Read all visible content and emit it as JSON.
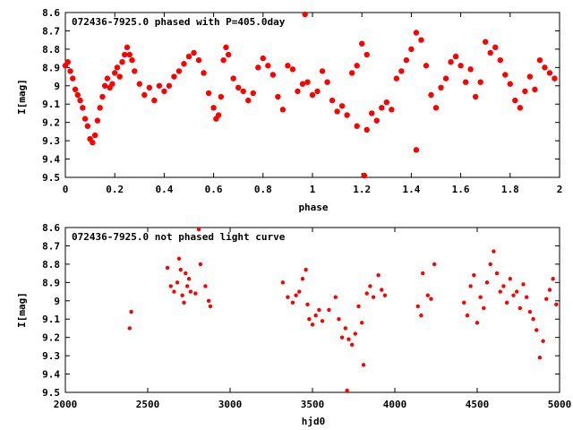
{
  "chart_data": [
    {
      "type": "scatter",
      "title": "072436-7925.0 phased with P=405.0day",
      "xlabel": "phase",
      "ylabel": "I[mag]",
      "xlim": [
        0,
        2
      ],
      "ylim": [
        9.5,
        8.6
      ],
      "y_inverted": true,
      "grid": false,
      "marker_color": "#ff0000",
      "x_ticks": [
        "0",
        "0.2",
        "0.4",
        "0.6",
        "0.8",
        "1",
        "1.2",
        "1.4",
        "1.6",
        "1.8",
        "2"
      ],
      "y_ticks": [
        "8.6",
        "8.7",
        "8.8",
        "8.9",
        "9",
        "9.1",
        "9.2",
        "9.3",
        "9.4",
        "9.5"
      ],
      "series": [
        {
          "points": [
            [
              0.0,
              8.89
            ],
            [
              0.01,
              8.87
            ],
            [
              0.02,
              8.92
            ],
            [
              0.03,
              8.96
            ],
            [
              0.04,
              9.02
            ],
            [
              0.05,
              9.05
            ],
            [
              0.06,
              9.08
            ],
            [
              0.07,
              9.12
            ],
            [
              0.08,
              9.18
            ],
            [
              0.09,
              9.22
            ],
            [
              0.1,
              9.29
            ],
            [
              0.11,
              9.31
            ],
            [
              0.12,
              9.27
            ],
            [
              0.13,
              9.19
            ],
            [
              0.14,
              9.12
            ],
            [
              0.15,
              9.06
            ],
            [
              0.16,
              9.0
            ],
            [
              0.17,
              8.96
            ],
            [
              0.18,
              9.01
            ],
            [
              0.19,
              8.99
            ],
            [
              0.2,
              8.93
            ],
            [
              0.21,
              8.9
            ],
            [
              0.22,
              8.95
            ],
            [
              0.23,
              8.87
            ],
            [
              0.24,
              8.83
            ],
            [
              0.25,
              8.79
            ],
            [
              0.26,
              8.83
            ],
            [
              0.27,
              8.86
            ],
            [
              0.28,
              8.92
            ],
            [
              0.3,
              8.99
            ],
            [
              0.32,
              9.05
            ],
            [
              0.34,
              9.01
            ],
            [
              0.36,
              9.08
            ],
            [
              0.38,
              9.0
            ],
            [
              0.4,
              9.03
            ],
            [
              0.42,
              9.0
            ],
            [
              0.44,
              8.95
            ],
            [
              0.46,
              8.92
            ],
            [
              0.48,
              8.88
            ],
            [
              0.5,
              8.84
            ],
            [
              0.52,
              8.82
            ],
            [
              0.54,
              8.86
            ],
            [
              0.56,
              8.93
            ],
            [
              0.58,
              9.04
            ],
            [
              0.6,
              9.12
            ],
            [
              0.61,
              9.18
            ],
            [
              0.62,
              9.16
            ],
            [
              0.63,
              9.06
            ],
            [
              0.64,
              8.86
            ],
            [
              0.65,
              8.79
            ],
            [
              0.66,
              8.83
            ],
            [
              0.68,
              8.96
            ],
            [
              0.7,
              9.01
            ],
            [
              0.72,
              9.03
            ],
            [
              0.74,
              9.08
            ],
            [
              0.76,
              9.04
            ],
            [
              0.78,
              8.9
            ],
            [
              0.8,
              8.85
            ],
            [
              0.82,
              8.89
            ],
            [
              0.84,
              8.94
            ],
            [
              0.86,
              9.06
            ],
            [
              0.88,
              9.13
            ],
            [
              0.9,
              8.89
            ],
            [
              0.92,
              8.91
            ],
            [
              0.94,
              9.03
            ],
            [
              0.96,
              8.99
            ],
            [
              0.97,
              8.61
            ],
            [
              0.98,
              8.98
            ],
            [
              1.0,
              9.05
            ],
            [
              1.02,
              9.03
            ],
            [
              1.04,
              8.92
            ],
            [
              1.06,
              8.98
            ],
            [
              1.08,
              9.08
            ],
            [
              1.1,
              9.14
            ],
            [
              1.12,
              9.11
            ],
            [
              1.14,
              9.16
            ],
            [
              1.16,
              8.93
            ],
            [
              1.18,
              8.89
            ],
            [
              1.2,
              8.77
            ],
            [
              1.22,
              8.83
            ],
            [
              1.24,
              9.15
            ],
            [
              1.26,
              9.19
            ],
            [
              1.28,
              9.12
            ],
            [
              1.3,
              9.09
            ],
            [
              1.32,
              9.13
            ],
            [
              1.34,
              8.96
            ],
            [
              1.36,
              8.92
            ],
            [
              1.38,
              8.86
            ],
            [
              1.4,
              8.8
            ],
            [
              1.42,
              8.71
            ],
            [
              1.44,
              8.75
            ],
            [
              1.46,
              8.89
            ],
            [
              1.48,
              9.05
            ],
            [
              1.5,
              9.12
            ],
            [
              1.52,
              9.01
            ],
            [
              1.54,
              8.96
            ],
            [
              1.56,
              8.87
            ],
            [
              1.58,
              8.84
            ],
            [
              1.6,
              8.89
            ],
            [
              1.62,
              8.98
            ],
            [
              1.64,
              8.91
            ],
            [
              1.66,
              9.06
            ],
            [
              1.68,
              8.98
            ],
            [
              1.7,
              8.76
            ],
            [
              1.72,
              8.82
            ],
            [
              1.74,
              8.79
            ],
            [
              1.76,
              8.86
            ],
            [
              1.78,
              8.94
            ],
            [
              1.8,
              8.99
            ],
            [
              1.82,
              9.08
            ],
            [
              1.84,
              9.12
            ],
            [
              1.86,
              9.03
            ],
            [
              1.88,
              8.95
            ],
            [
              1.9,
              9.02
            ],
            [
              1.92,
              8.86
            ],
            [
              1.94,
              8.9
            ],
            [
              1.96,
              8.93
            ],
            [
              1.98,
              8.96
            ],
            [
              1.21,
              9.49
            ],
            [
              1.42,
              9.35
            ],
            [
              1.18,
              9.22
            ],
            [
              1.22,
              9.24
            ]
          ]
        }
      ]
    },
    {
      "type": "scatter",
      "title": "072436-7925.0 not phased light curve",
      "xlabel": "hjd0",
      "ylabel": "I[mag]",
      "xlim": [
        2000,
        5000
      ],
      "ylim": [
        9.5,
        8.6
      ],
      "y_inverted": true,
      "grid": false,
      "marker_color": "#ff0000",
      "x_ticks": [
        "2000",
        "2500",
        "3000",
        "3500",
        "4000",
        "4500",
        "5000"
      ],
      "y_ticks": [
        "8.6",
        "8.7",
        "8.8",
        "8.9",
        "9",
        "9.1",
        "9.2",
        "9.3",
        "9.4",
        "9.5"
      ],
      "series": [
        {
          "points": [
            [
              2390,
              9.15
            ],
            [
              2400,
              9.06
            ],
            [
              2620,
              8.82
            ],
            [
              2640,
              8.92
            ],
            [
              2660,
              8.95
            ],
            [
              2680,
              8.9
            ],
            [
              2690,
              8.77
            ],
            [
              2700,
              8.83
            ],
            [
              2710,
              8.97
            ],
            [
              2720,
              9.01
            ],
            [
              2730,
              8.85
            ],
            [
              2740,
              8.92
            ],
            [
              2750,
              8.88
            ],
            [
              2760,
              8.95
            ],
            [
              2790,
              8.96
            ],
            [
              2810,
              8.61
            ],
            [
              2820,
              8.8
            ],
            [
              2850,
              8.92
            ],
            [
              2870,
              9.0
            ],
            [
              2880,
              9.03
            ],
            [
              3320,
              8.9
            ],
            [
              3350,
              8.98
            ],
            [
              3380,
              9.01
            ],
            [
              3400,
              8.97
            ],
            [
              3420,
              8.95
            ],
            [
              3440,
              8.88
            ],
            [
              3460,
              8.83
            ],
            [
              3470,
              9.02
            ],
            [
              3480,
              9.1
            ],
            [
              3500,
              9.13
            ],
            [
              3520,
              9.08
            ],
            [
              3540,
              9.05
            ],
            [
              3560,
              9.11
            ],
            [
              3600,
              9.05
            ],
            [
              3640,
              8.98
            ],
            [
              3660,
              9.1
            ],
            [
              3680,
              9.2
            ],
            [
              3700,
              9.15
            ],
            [
              3710,
              9.49
            ],
            [
              3720,
              9.21
            ],
            [
              3740,
              9.24
            ],
            [
              3760,
              9.18
            ],
            [
              3780,
              9.03
            ],
            [
              3800,
              9.12
            ],
            [
              3810,
              9.35
            ],
            [
              3830,
              8.96
            ],
            [
              3850,
              8.92
            ],
            [
              3870,
              8.98
            ],
            [
              3900,
              8.86
            ],
            [
              3920,
              8.94
            ],
            [
              3940,
              8.97
            ],
            [
              4140,
              9.03
            ],
            [
              4160,
              9.08
            ],
            [
              4170,
              8.85
            ],
            [
              4200,
              8.97
            ],
            [
              4220,
              8.99
            ],
            [
              4240,
              8.8
            ],
            [
              4420,
              9.01
            ],
            [
              4440,
              9.08
            ],
            [
              4460,
              8.92
            ],
            [
              4480,
              8.86
            ],
            [
              4500,
              9.12
            ],
            [
              4520,
              8.98
            ],
            [
              4540,
              9.04
            ],
            [
              4560,
              8.9
            ],
            [
              4580,
              8.8
            ],
            [
              4600,
              8.73
            ],
            [
              4620,
              8.85
            ],
            [
              4640,
              8.95
            ],
            [
              4660,
              8.92
            ],
            [
              4680,
              9.01
            ],
            [
              4700,
              8.88
            ],
            [
              4720,
              8.97
            ],
            [
              4740,
              8.95
            ],
            [
              4760,
              9.04
            ],
            [
              4780,
              8.91
            ],
            [
              4800,
              8.98
            ],
            [
              4820,
              9.06
            ],
            [
              4840,
              9.1
            ],
            [
              4860,
              9.16
            ],
            [
              4880,
              9.31
            ],
            [
              4900,
              9.22
            ],
            [
              4920,
              8.99
            ],
            [
              4940,
              8.94
            ],
            [
              4960,
              8.88
            ],
            [
              4980,
              9.02
            ]
          ]
        }
      ]
    }
  ]
}
